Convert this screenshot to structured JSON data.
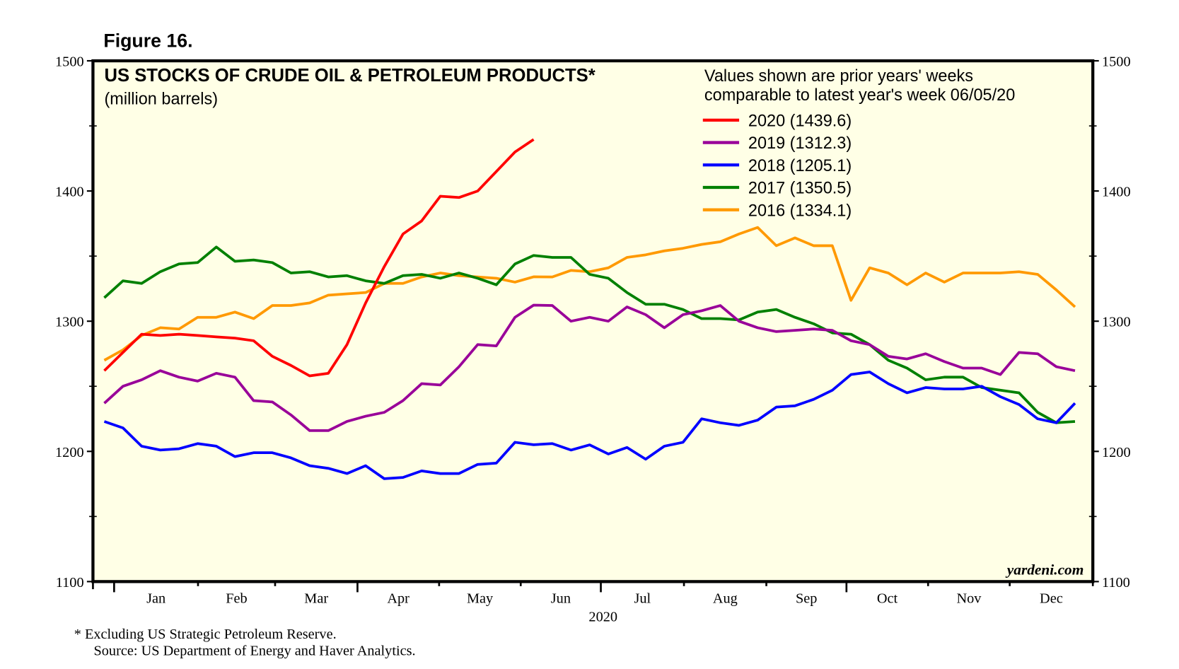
{
  "figure_label": "Figure 16.",
  "chart_data": {
    "type": "line",
    "title": "US STOCKS OF CRUDE OIL & PETROLEUM PRODUCTS*",
    "subtitle": "(million barrels)",
    "note": "Values shown are prior years' weeks",
    "note2": "comparable to latest year's week 06/05/20",
    "xlabel": "2020",
    "ylabel": "",
    "ylim": [
      1100,
      1500
    ],
    "yticks": [
      "1500",
      "1400",
      "1300",
      "1200",
      "1100"
    ],
    "ytick_values": [
      1500,
      1400,
      1300,
      1200,
      1100
    ],
    "months": [
      "Jan",
      "Feb",
      "Mar",
      "Apr",
      "May",
      "Jun",
      "Jul",
      "Aug",
      "Sep",
      "Oct",
      "Nov",
      "Dec"
    ],
    "x_unit": "week of year (1-53)",
    "grid": false,
    "legend_placement": "top-right",
    "watermark": "yardeni.com",
    "series": [
      {
        "name": "2020 (1439.6)",
        "color": "#ff0000",
        "values": [
          1262,
          1276,
          1290,
          1289,
          1290,
          1289,
          1288,
          1287,
          1285,
          1273,
          1266,
          1258,
          1260,
          1282,
          1314,
          1342,
          1367,
          1377,
          1396,
          1395,
          1400,
          1415,
          1430,
          1439.6
        ]
      },
      {
        "name": "2019 (1312.3)",
        "color": "#990099",
        "values": [
          1237,
          1250,
          1255,
          1262,
          1257,
          1254,
          1260,
          1257,
          1239,
          1238,
          1228,
          1216,
          1216,
          1223,
          1227,
          1230,
          1239,
          1252,
          1251,
          1265,
          1282,
          1281,
          1303,
          1312.3,
          1312,
          1300,
          1303,
          1300,
          1311,
          1305,
          1295,
          1305,
          1308,
          1312,
          1300,
          1295,
          1292,
          1293,
          1294,
          1293,
          1285,
          1282,
          1273,
          1271,
          1275,
          1269,
          1264,
          1264,
          1259,
          1276,
          1275,
          1265,
          1262
        ]
      },
      {
        "name": "2018 (1205.1)",
        "color": "#0000ff",
        "values": [
          1223,
          1218,
          1204,
          1201,
          1202,
          1206,
          1204,
          1196,
          1199,
          1199,
          1195,
          1189,
          1187,
          1183,
          1189,
          1179,
          1180,
          1185,
          1183,
          1183,
          1190,
          1191,
          1207,
          1205.1,
          1206,
          1201,
          1205,
          1198,
          1203,
          1194,
          1204,
          1207,
          1225,
          1222,
          1220,
          1224,
          1234,
          1235,
          1240,
          1247,
          1259,
          1261,
          1252,
          1245,
          1249,
          1248,
          1248,
          1250,
          1242,
          1236,
          1225,
          1222,
          1237
        ]
      },
      {
        "name": "2017 (1350.5)",
        "color": "#008000",
        "values": [
          1318,
          1331,
          1329,
          1338,
          1344,
          1345,
          1357,
          1346,
          1347,
          1345,
          1337,
          1338,
          1334,
          1335,
          1331,
          1329,
          1335,
          1336,
          1333,
          1337,
          1333,
          1328,
          1344,
          1350.5,
          1349,
          1349,
          1336,
          1333,
          1322,
          1313,
          1313,
          1309,
          1302,
          1302,
          1301,
          1307,
          1309,
          1303,
          1298,
          1291,
          1290,
          1282,
          1270,
          1264,
          1255,
          1257,
          1257,
          1249,
          1247,
          1245,
          1230,
          1222,
          1223
        ]
      },
      {
        "name": "2016 (1334.1)",
        "color": "#ff9900",
        "values": [
          1270,
          1278,
          1289,
          1295,
          1294,
          1303,
          1303,
          1307,
          1302,
          1312,
          1312,
          1314,
          1320,
          1321,
          1322,
          1329,
          1329,
          1334,
          1337,
          1335,
          1334,
          1333,
          1330,
          1334.1,
          1334,
          1339,
          1338,
          1341,
          1349,
          1351,
          1354,
          1356,
          1359,
          1361,
          1367,
          1372,
          1358,
          1364,
          1358,
          1358,
          1316,
          1341,
          1337,
          1328,
          1337,
          1330,
          1337,
          1337,
          1337,
          1338,
          1336,
          1324,
          1311
        ]
      }
    ]
  },
  "footnote": "*   Excluding US Strategic Petroleum Reserve.",
  "source": "Source: US Department of Energy and Haver Analytics."
}
